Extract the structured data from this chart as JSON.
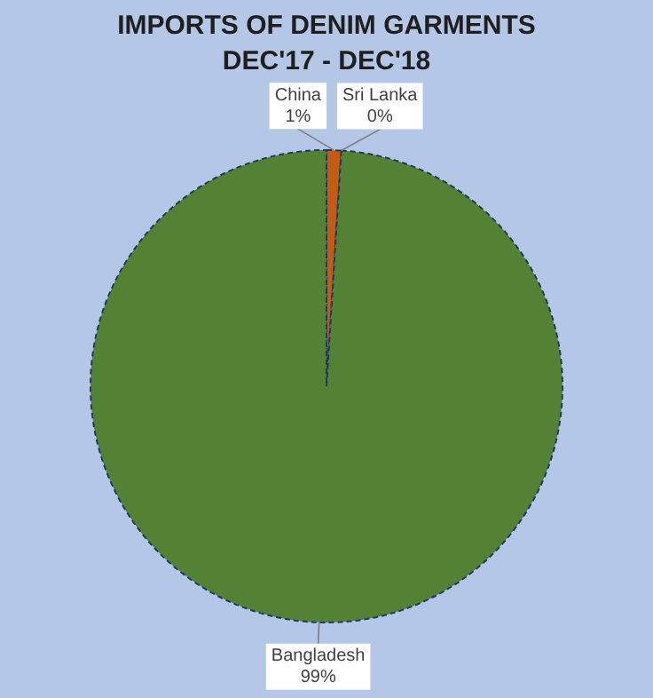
{
  "chart_data": {
    "type": "pie",
    "title": "IMPORTS OF DENIM GARMENTS",
    "subtitle": "DEC'17 - DEC'18",
    "categories": [
      "China",
      "Sri Lanka",
      "Bangladesh"
    ],
    "values": [
      1,
      0,
      99
    ],
    "colors": [
      "#c55a11",
      "#7f7f7f",
      "#548235"
    ],
    "value_labels": [
      "1%",
      "0%",
      "99%"
    ],
    "legend": false
  }
}
